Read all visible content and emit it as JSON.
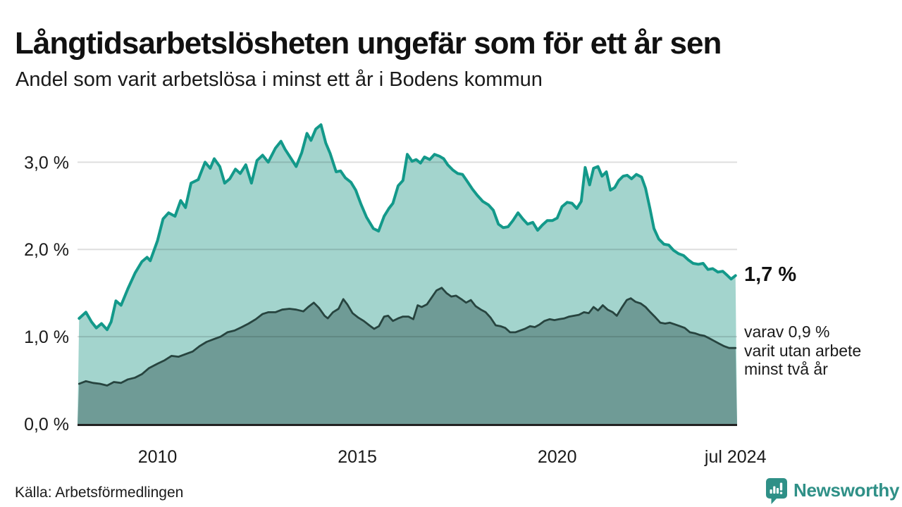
{
  "header": {
    "title": "Långtidsarbetslösheten ungefär som för ett år sen",
    "subtitle": "Andel som varit arbetslösa i minst ett år i Bodens kommun"
  },
  "footer": {
    "source": "Källa: Arbetsförmedlingen",
    "brand": "Newsworthy",
    "brand_color": "#2f9087",
    "logo_icon": "newsworthy-speech-bubble-bar-chart-icon"
  },
  "chart_data": {
    "type": "area",
    "title": "Långtidsarbetslösheten ungefär som för ett år sen",
    "subtitle": "Andel som varit arbetslösa i minst ett år i Bodens kommun",
    "xlabel": "",
    "ylabel": "",
    "xlim": [
      2008.0,
      2024.5
    ],
    "ylim": [
      0,
      3.6
    ],
    "grid": true,
    "legend_position": "none",
    "colors": {
      "series1_line": "#13998a",
      "series1_fill": "#a3d4cd",
      "series2_line": "#27443f",
      "series2_fill": "#6f9b96",
      "gridline": "rgba(0,0,0,0.13)",
      "baseline": "#222222"
    },
    "yticks": [
      {
        "v": 0,
        "label": "0,0 %"
      },
      {
        "v": 1,
        "label": "1,0 %"
      },
      {
        "v": 2,
        "label": "2,0 %"
      },
      {
        "v": 3,
        "label": "3,0 %"
      }
    ],
    "xticks": [
      {
        "v": 2010,
        "label": "2010"
      },
      {
        "v": 2015,
        "label": "2015"
      },
      {
        "v": 2020,
        "label": "2020"
      },
      {
        "v": 2024.46,
        "label": "jul 2024"
      }
    ],
    "annotations": {
      "value_label": "1,7 %",
      "sub_lines": [
        "varav 0,9 %",
        "varit utan arbete",
        "minst två år"
      ]
    },
    "series": [
      {
        "name": "Arbetslösa minst ett år",
        "latest_value": "1,7 %",
        "points": [
          [
            2008.04,
            1.21
          ],
          [
            2008.21,
            1.28
          ],
          [
            2008.35,
            1.17
          ],
          [
            2008.47,
            1.1
          ],
          [
            2008.6,
            1.15
          ],
          [
            2008.74,
            1.08
          ],
          [
            2008.84,
            1.17
          ],
          [
            2008.96,
            1.41
          ],
          [
            2009.09,
            1.36
          ],
          [
            2009.26,
            1.55
          ],
          [
            2009.44,
            1.73
          ],
          [
            2009.61,
            1.86
          ],
          [
            2009.74,
            1.91
          ],
          [
            2009.82,
            1.87
          ],
          [
            2010.0,
            2.1
          ],
          [
            2010.14,
            2.35
          ],
          [
            2010.28,
            2.42
          ],
          [
            2010.44,
            2.38
          ],
          [
            2010.58,
            2.56
          ],
          [
            2010.7,
            2.48
          ],
          [
            2010.84,
            2.76
          ],
          [
            2011.02,
            2.8
          ],
          [
            2011.19,
            3.0
          ],
          [
            2011.32,
            2.93
          ],
          [
            2011.42,
            3.04
          ],
          [
            2011.56,
            2.95
          ],
          [
            2011.68,
            2.76
          ],
          [
            2011.81,
            2.81
          ],
          [
            2011.95,
            2.92
          ],
          [
            2012.07,
            2.87
          ],
          [
            2012.21,
            2.97
          ],
          [
            2012.35,
            2.76
          ],
          [
            2012.49,
            3.02
          ],
          [
            2012.63,
            3.08
          ],
          [
            2012.77,
            3.0
          ],
          [
            2012.95,
            3.16
          ],
          [
            2013.09,
            3.24
          ],
          [
            2013.19,
            3.15
          ],
          [
            2013.33,
            3.05
          ],
          [
            2013.47,
            2.95
          ],
          [
            2013.61,
            3.11
          ],
          [
            2013.74,
            3.33
          ],
          [
            2013.84,
            3.25
          ],
          [
            2013.96,
            3.38
          ],
          [
            2014.09,
            3.43
          ],
          [
            2014.21,
            3.22
          ],
          [
            2014.32,
            3.1
          ],
          [
            2014.47,
            2.89
          ],
          [
            2014.58,
            2.9
          ],
          [
            2014.7,
            2.82
          ],
          [
            2014.84,
            2.77
          ],
          [
            2014.96,
            2.68
          ],
          [
            2015.09,
            2.52
          ],
          [
            2015.23,
            2.37
          ],
          [
            2015.4,
            2.24
          ],
          [
            2015.53,
            2.21
          ],
          [
            2015.67,
            2.38
          ],
          [
            2015.79,
            2.47
          ],
          [
            2015.89,
            2.53
          ],
          [
            2016.02,
            2.73
          ],
          [
            2016.14,
            2.79
          ],
          [
            2016.25,
            3.09
          ],
          [
            2016.37,
            3.01
          ],
          [
            2016.47,
            3.03
          ],
          [
            2016.58,
            2.99
          ],
          [
            2016.68,
            3.06
          ],
          [
            2016.81,
            3.03
          ],
          [
            2016.93,
            3.09
          ],
          [
            2017.05,
            3.07
          ],
          [
            2017.16,
            3.04
          ],
          [
            2017.26,
            2.97
          ],
          [
            2017.39,
            2.91
          ],
          [
            2017.51,
            2.87
          ],
          [
            2017.63,
            2.86
          ],
          [
            2017.75,
            2.78
          ],
          [
            2017.88,
            2.69
          ],
          [
            2018.0,
            2.62
          ],
          [
            2018.14,
            2.55
          ],
          [
            2018.28,
            2.51
          ],
          [
            2018.4,
            2.45
          ],
          [
            2018.53,
            2.29
          ],
          [
            2018.65,
            2.25
          ],
          [
            2018.77,
            2.26
          ],
          [
            2018.89,
            2.33
          ],
          [
            2019.02,
            2.42
          ],
          [
            2019.14,
            2.35
          ],
          [
            2019.26,
            2.29
          ],
          [
            2019.39,
            2.31
          ],
          [
            2019.51,
            2.22
          ],
          [
            2019.63,
            2.28
          ],
          [
            2019.75,
            2.33
          ],
          [
            2019.88,
            2.33
          ],
          [
            2020.0,
            2.36
          ],
          [
            2020.12,
            2.49
          ],
          [
            2020.25,
            2.54
          ],
          [
            2020.37,
            2.53
          ],
          [
            2020.49,
            2.47
          ],
          [
            2020.6,
            2.55
          ],
          [
            2020.7,
            2.94
          ],
          [
            2020.81,
            2.74
          ],
          [
            2020.91,
            2.93
          ],
          [
            2021.02,
            2.95
          ],
          [
            2021.12,
            2.84
          ],
          [
            2021.23,
            2.89
          ],
          [
            2021.33,
            2.68
          ],
          [
            2021.44,
            2.71
          ],
          [
            2021.54,
            2.79
          ],
          [
            2021.65,
            2.84
          ],
          [
            2021.75,
            2.85
          ],
          [
            2021.86,
            2.81
          ],
          [
            2021.98,
            2.86
          ],
          [
            2022.11,
            2.83
          ],
          [
            2022.21,
            2.7
          ],
          [
            2022.32,
            2.47
          ],
          [
            2022.42,
            2.24
          ],
          [
            2022.54,
            2.12
          ],
          [
            2022.67,
            2.06
          ],
          [
            2022.79,
            2.05
          ],
          [
            2022.91,
            1.99
          ],
          [
            2023.04,
            1.95
          ],
          [
            2023.16,
            1.93
          ],
          [
            2023.28,
            1.88
          ],
          [
            2023.4,
            1.84
          ],
          [
            2023.53,
            1.83
          ],
          [
            2023.65,
            1.84
          ],
          [
            2023.77,
            1.77
          ],
          [
            2023.89,
            1.78
          ],
          [
            2024.02,
            1.74
          ],
          [
            2024.14,
            1.75
          ],
          [
            2024.26,
            1.7
          ],
          [
            2024.35,
            1.66
          ],
          [
            2024.46,
            1.7
          ]
        ]
      },
      {
        "name": "varav utan arbete minst två år",
        "latest_value": "0,9 %",
        "points": [
          [
            2008.04,
            0.46
          ],
          [
            2008.21,
            0.49
          ],
          [
            2008.39,
            0.47
          ],
          [
            2008.56,
            0.46
          ],
          [
            2008.74,
            0.44
          ],
          [
            2008.91,
            0.48
          ],
          [
            2009.09,
            0.47
          ],
          [
            2009.26,
            0.51
          ],
          [
            2009.44,
            0.53
          ],
          [
            2009.61,
            0.57
          ],
          [
            2009.79,
            0.64
          ],
          [
            2010.0,
            0.69
          ],
          [
            2010.18,
            0.73
          ],
          [
            2010.35,
            0.78
          ],
          [
            2010.53,
            0.77
          ],
          [
            2010.7,
            0.8
          ],
          [
            2010.88,
            0.83
          ],
          [
            2011.05,
            0.89
          ],
          [
            2011.23,
            0.94
          ],
          [
            2011.4,
            0.97
          ],
          [
            2011.58,
            1.0
          ],
          [
            2011.75,
            1.05
          ],
          [
            2011.93,
            1.07
          ],
          [
            2012.11,
            1.11
          ],
          [
            2012.28,
            1.15
          ],
          [
            2012.46,
            1.2
          ],
          [
            2012.63,
            1.26
          ],
          [
            2012.77,
            1.28
          ],
          [
            2012.95,
            1.28
          ],
          [
            2013.12,
            1.31
          ],
          [
            2013.3,
            1.32
          ],
          [
            2013.47,
            1.31
          ],
          [
            2013.65,
            1.29
          ],
          [
            2013.77,
            1.34
          ],
          [
            2013.91,
            1.39
          ],
          [
            2014.04,
            1.33
          ],
          [
            2014.18,
            1.24
          ],
          [
            2014.26,
            1.21
          ],
          [
            2014.39,
            1.28
          ],
          [
            2014.53,
            1.32
          ],
          [
            2014.65,
            1.43
          ],
          [
            2014.75,
            1.37
          ],
          [
            2014.88,
            1.27
          ],
          [
            2015.02,
            1.22
          ],
          [
            2015.16,
            1.18
          ],
          [
            2015.3,
            1.13
          ],
          [
            2015.42,
            1.09
          ],
          [
            2015.54,
            1.12
          ],
          [
            2015.67,
            1.23
          ],
          [
            2015.77,
            1.24
          ],
          [
            2015.89,
            1.18
          ],
          [
            2016.02,
            1.21
          ],
          [
            2016.14,
            1.23
          ],
          [
            2016.28,
            1.23
          ],
          [
            2016.4,
            1.2
          ],
          [
            2016.51,
            1.36
          ],
          [
            2016.61,
            1.34
          ],
          [
            2016.74,
            1.37
          ],
          [
            2016.86,
            1.45
          ],
          [
            2016.98,
            1.53
          ],
          [
            2017.11,
            1.56
          ],
          [
            2017.23,
            1.5
          ],
          [
            2017.35,
            1.46
          ],
          [
            2017.47,
            1.47
          ],
          [
            2017.6,
            1.43
          ],
          [
            2017.72,
            1.39
          ],
          [
            2017.84,
            1.42
          ],
          [
            2017.96,
            1.35
          ],
          [
            2018.09,
            1.31
          ],
          [
            2018.21,
            1.28
          ],
          [
            2018.33,
            1.22
          ],
          [
            2018.46,
            1.13
          ],
          [
            2018.58,
            1.12
          ],
          [
            2018.7,
            1.1
          ],
          [
            2018.82,
            1.05
          ],
          [
            2018.95,
            1.05
          ],
          [
            2019.07,
            1.07
          ],
          [
            2019.19,
            1.09
          ],
          [
            2019.32,
            1.12
          ],
          [
            2019.44,
            1.11
          ],
          [
            2019.56,
            1.14
          ],
          [
            2019.68,
            1.18
          ],
          [
            2019.81,
            1.2
          ],
          [
            2019.93,
            1.19
          ],
          [
            2020.05,
            1.2
          ],
          [
            2020.18,
            1.21
          ],
          [
            2020.3,
            1.23
          ],
          [
            2020.42,
            1.24
          ],
          [
            2020.54,
            1.25
          ],
          [
            2020.67,
            1.28
          ],
          [
            2020.79,
            1.27
          ],
          [
            2020.91,
            1.34
          ],
          [
            2021.02,
            1.3
          ],
          [
            2021.14,
            1.36
          ],
          [
            2021.26,
            1.31
          ],
          [
            2021.39,
            1.28
          ],
          [
            2021.49,
            1.24
          ],
          [
            2021.61,
            1.33
          ],
          [
            2021.74,
            1.42
          ],
          [
            2021.84,
            1.44
          ],
          [
            2021.96,
            1.4
          ],
          [
            2022.09,
            1.38
          ],
          [
            2022.21,
            1.34
          ],
          [
            2022.33,
            1.28
          ],
          [
            2022.46,
            1.22
          ],
          [
            2022.58,
            1.16
          ],
          [
            2022.7,
            1.15
          ],
          [
            2022.82,
            1.16
          ],
          [
            2022.95,
            1.14
          ],
          [
            2023.07,
            1.12
          ],
          [
            2023.19,
            1.1
          ],
          [
            2023.32,
            1.05
          ],
          [
            2023.44,
            1.04
          ],
          [
            2023.56,
            1.02
          ],
          [
            2023.68,
            1.01
          ],
          [
            2023.81,
            0.98
          ],
          [
            2023.93,
            0.95
          ],
          [
            2024.05,
            0.92
          ],
          [
            2024.18,
            0.89
          ],
          [
            2024.3,
            0.87
          ],
          [
            2024.46,
            0.87
          ]
        ]
      }
    ]
  }
}
